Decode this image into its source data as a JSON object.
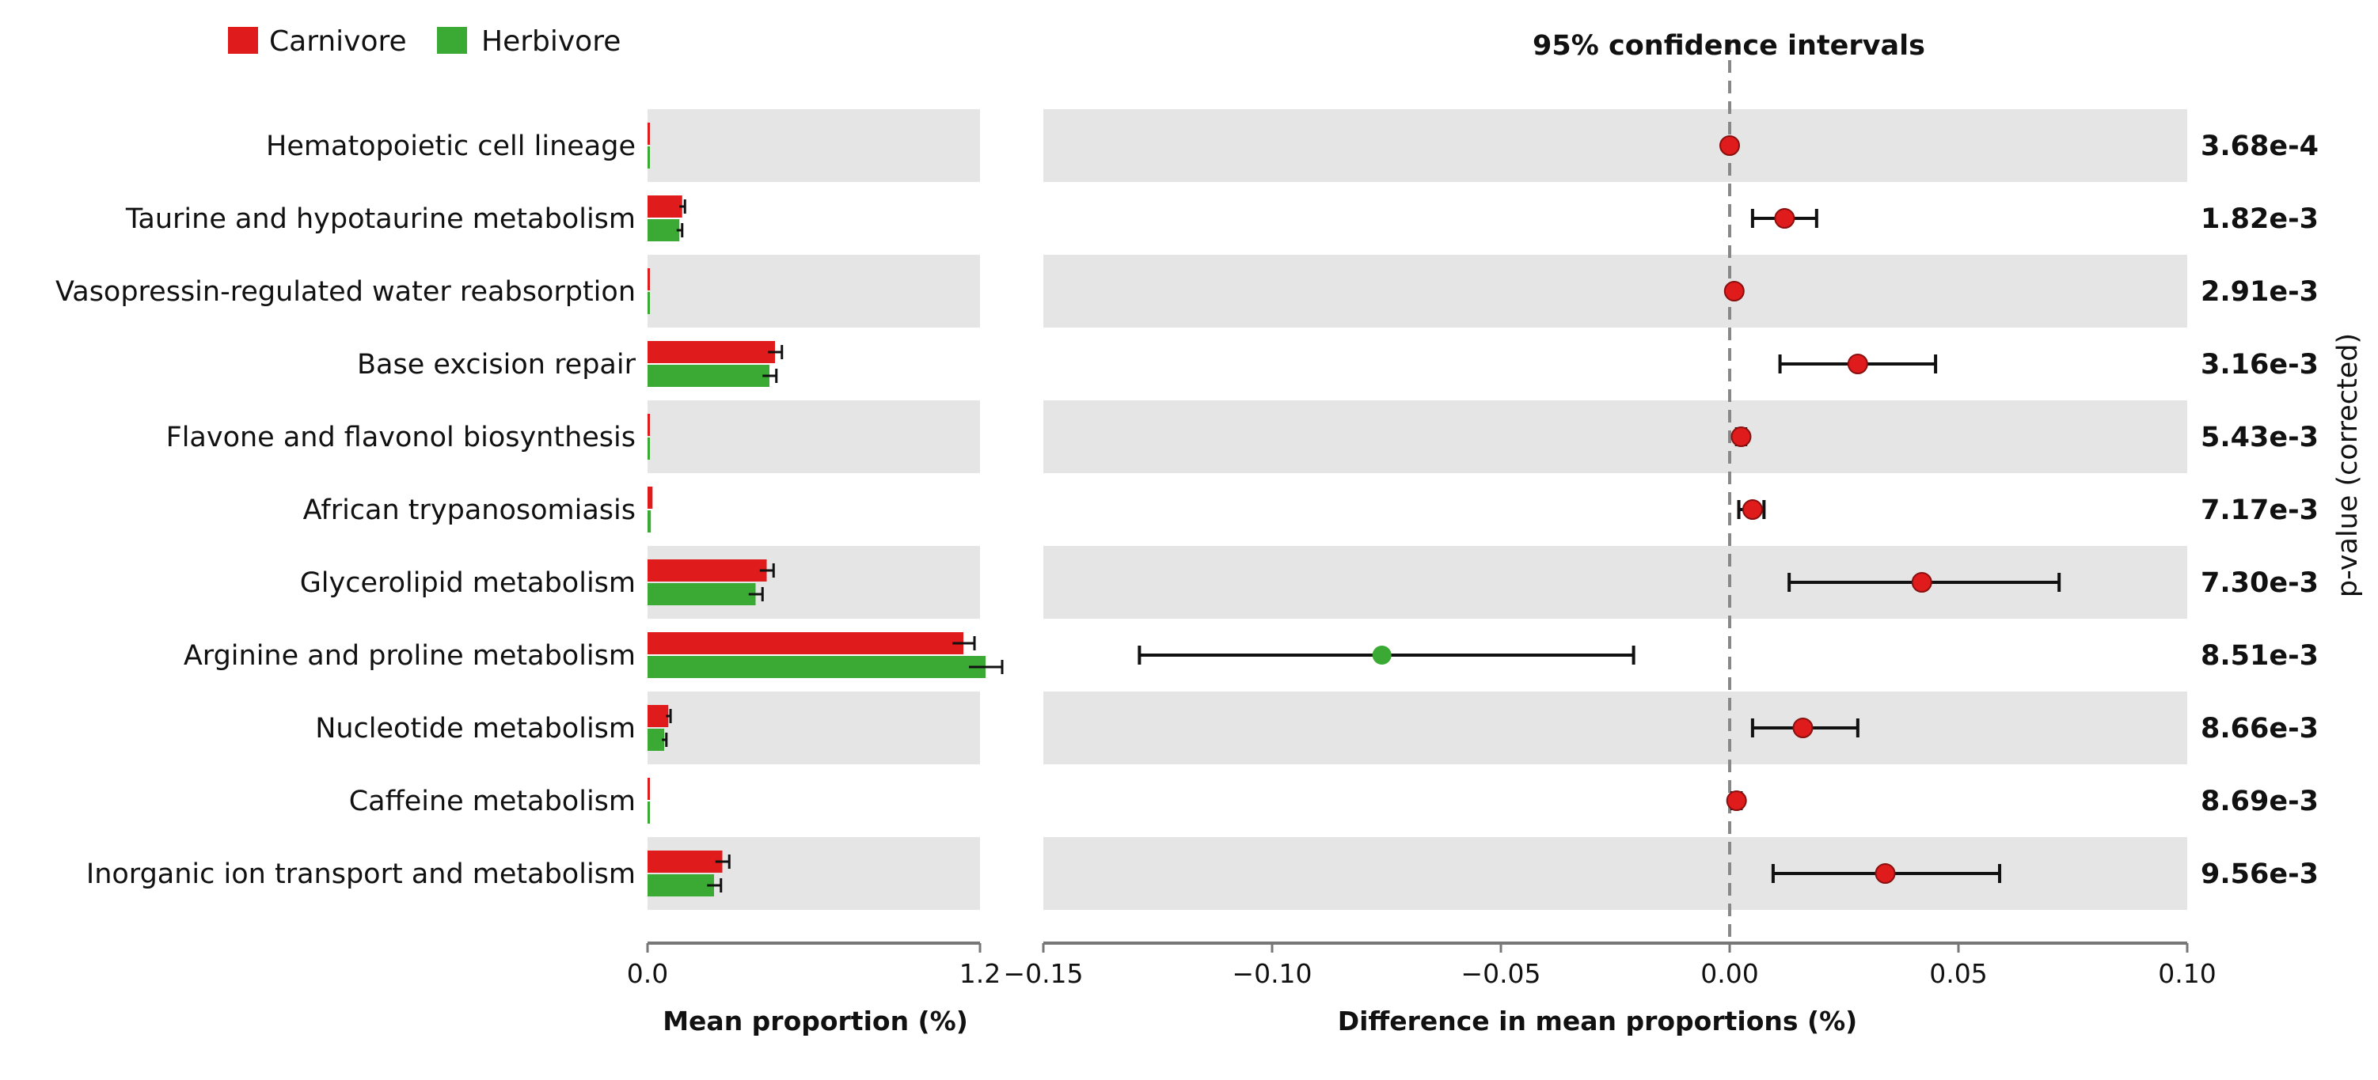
{
  "chart_data": {
    "type": "bar",
    "title": "95% confidence intervals",
    "legend": {
      "position": "top-left",
      "entries": [
        {
          "name": "Carnivore",
          "color": "#e01b1b"
        },
        {
          "name": "Herbivore",
          "color": "#3aaa35"
        }
      ]
    },
    "categories": [
      "Hematopoietic cell lineage",
      "Taurine and hypotaurine metabolism",
      "Vasopressin-regulated water reabsorption",
      "Base excision repair",
      "Flavone and flavonol biosynthesis",
      "African trypanosomiasis",
      "Glycerolipid metabolism",
      "Arginine and proline metabolism",
      "Nucleotide metabolism",
      "Caffeine metabolism",
      "Inorganic ion transport and metabolism"
    ],
    "mean_proportion": {
      "xlabel": "Mean proportion (%)",
      "xlim": [
        0.0,
        1.2
      ],
      "ticks": [
        "0.0",
        "1.2"
      ],
      "series": [
        {
          "name": "Carnivore",
          "color": "#e01b1b",
          "values": [
            0.004,
            0.125,
            0.004,
            0.46,
            0.008,
            0.018,
            0.43,
            1.14,
            0.075,
            0.004,
            0.27
          ],
          "errors": [
            0.001,
            0.01,
            0.001,
            0.025,
            0.001,
            0.002,
            0.025,
            0.04,
            0.008,
            0.001,
            0.025
          ]
        },
        {
          "name": "Herbivore",
          "color": "#3aaa35",
          "values": [
            0.001,
            0.115,
            0.001,
            0.44,
            0.004,
            0.012,
            0.39,
            1.22,
            0.06,
            0.001,
            0.24
          ],
          "errors": [
            0.001,
            0.01,
            0.001,
            0.025,
            0.001,
            0.002,
            0.025,
            0.06,
            0.008,
            0.001,
            0.025
          ]
        }
      ]
    },
    "difference": {
      "xlabel": "Difference in mean proportions (%)",
      "xlim": [
        -0.15,
        0.1
      ],
      "ticks": [
        "−0.15",
        "−0.10",
        "−0.05",
        "0.00",
        "0.05",
        "0.10"
      ],
      "tick_values": [
        -0.15,
        -0.1,
        -0.05,
        0.0,
        0.05,
        0.1
      ],
      "reference_line": 0.0,
      "points": [
        {
          "diff": 0.0,
          "ci_low": -0.0005,
          "ci_high": 0.0005,
          "color": "#e01b1b"
        },
        {
          "diff": 0.012,
          "ci_low": 0.005,
          "ci_high": 0.019,
          "color": "#e01b1b"
        },
        {
          "diff": 0.001,
          "ci_low": 0.0005,
          "ci_high": 0.0015,
          "color": "#e01b1b"
        },
        {
          "diff": 0.028,
          "ci_low": 0.011,
          "ci_high": 0.045,
          "color": "#e01b1b"
        },
        {
          "diff": 0.0025,
          "ci_low": 0.0015,
          "ci_high": 0.0035,
          "color": "#e01b1b"
        },
        {
          "diff": 0.005,
          "ci_low": 0.002,
          "ci_high": 0.0075,
          "color": "#e01b1b"
        },
        {
          "diff": 0.042,
          "ci_low": 0.013,
          "ci_high": 0.072,
          "color": "#e01b1b"
        },
        {
          "diff": -0.076,
          "ci_low": -0.129,
          "ci_high": -0.021,
          "color": "#3aaa35"
        },
        {
          "diff": 0.016,
          "ci_low": 0.005,
          "ci_high": 0.028,
          "color": "#e01b1b"
        },
        {
          "diff": 0.0015,
          "ci_low": 0.0005,
          "ci_high": 0.0025,
          "color": "#e01b1b"
        },
        {
          "diff": 0.034,
          "ci_low": 0.0095,
          "ci_high": 0.059,
          "color": "#e01b1b"
        }
      ]
    },
    "p_values": {
      "label": "p-value (corrected)",
      "values": [
        "3.68e-4",
        "1.82e-3",
        "2.91e-3",
        "3.16e-3",
        "5.43e-3",
        "7.17e-3",
        "7.30e-3",
        "8.51e-3",
        "8.66e-3",
        "8.69e-3",
        "9.56e-3"
      ]
    },
    "colors": {
      "band": "#e5e5e5",
      "axis": "#777777",
      "reference_line": "#888888"
    }
  }
}
